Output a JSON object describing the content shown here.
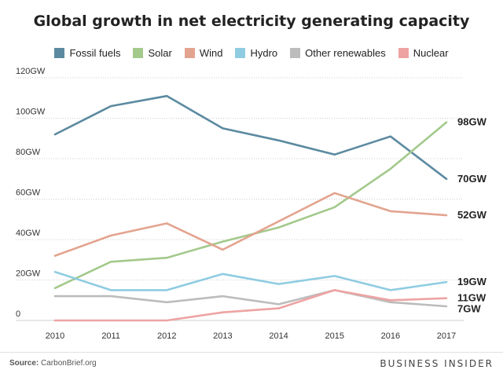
{
  "colors": {
    "Fossil fuels": "#5b8aa0",
    "Solar": "#a3c98b",
    "Wind": "#e3a48f",
    "Hydro": "#8fcce2",
    "Other renewables": "#bcbcbc",
    "Nuclear": "#eea3a3"
  },
  "source": {
    "label": "Source:",
    "text": "CarbonBrief.org"
  },
  "brand": "BUSINESS INSIDER",
  "chart_data": {
    "type": "line",
    "title": "Global growth in net electricity generating capacity",
    "x": [
      2010,
      2011,
      2012,
      2013,
      2014,
      2015,
      2016,
      2017
    ],
    "ylim": [
      0,
      120
    ],
    "yticks": [
      0,
      20,
      40,
      60,
      80,
      100,
      120
    ],
    "ytick_labels": [
      "0",
      "20GW",
      "40GW",
      "60GW",
      "80GW",
      "100GW",
      "120GW"
    ],
    "grid": true,
    "legend_placement": "top",
    "series": [
      {
        "name": "Fossil fuels",
        "values": [
          92,
          106,
          111,
          95,
          89,
          82,
          91,
          70
        ],
        "end_label": "70GW"
      },
      {
        "name": "Solar",
        "values": [
          16,
          29,
          31,
          39,
          46,
          56,
          75,
          98
        ],
        "end_label": "98GW"
      },
      {
        "name": "Wind",
        "values": [
          32,
          42,
          48,
          35,
          49,
          63,
          54,
          52
        ],
        "end_label": "52GW"
      },
      {
        "name": "Hydro",
        "values": [
          24,
          15,
          15,
          23,
          18,
          22,
          15,
          19
        ],
        "end_label": "19GW"
      },
      {
        "name": "Other renewables",
        "values": [
          12,
          12,
          9,
          12,
          8,
          15,
          9,
          7
        ],
        "end_label": "7GW"
      },
      {
        "name": "Nuclear",
        "values": [
          0,
          0,
          0,
          4,
          6,
          15,
          10,
          11
        ],
        "end_label": "11GW"
      }
    ]
  }
}
